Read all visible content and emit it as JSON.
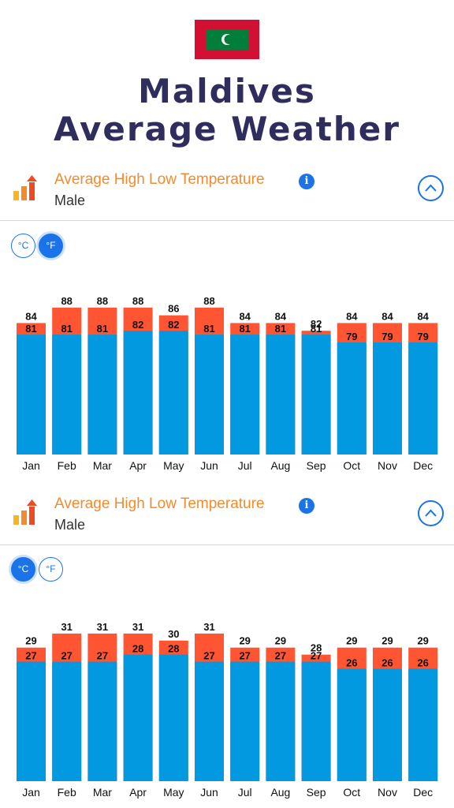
{
  "page": {
    "title_line1": "Maldives",
    "title_line2": "Average Weather"
  },
  "sections": [
    {
      "title": "Average High Low Temperature",
      "location": "Male",
      "unit_c": "°C",
      "unit_f": "°F",
      "active_unit": "F"
    },
    {
      "title": "Average High Low Temperature",
      "location": "Male",
      "unit_c": "°C",
      "unit_f": "°F",
      "active_unit": "C"
    }
  ],
  "colors": {
    "high": "#ff5533",
    "low": "#0399e0",
    "title": "#2f2c5e",
    "accent": "#f28b30",
    "button": "#1a73e8"
  },
  "chart_data": [
    {
      "type": "bar",
      "categories": [
        "Jan",
        "Feb",
        "Mar",
        "Apr",
        "May",
        "Jun",
        "Jul",
        "Aug",
        "Sep",
        "Oct",
        "Nov",
        "Dec"
      ],
      "series": [
        {
          "values": [
            84,
            88,
            88,
            88,
            86,
            88,
            84,
            84,
            82,
            84,
            84,
            84
          ]
        },
        {
          "values": [
            81,
            81,
            81,
            82,
            82,
            81,
            81,
            81,
            81,
            79,
            79,
            79
          ]
        }
      ],
      "ylim": [
        50,
        90
      ]
    },
    {
      "type": "bar",
      "categories": [
        "Jan",
        "Feb",
        "Mar",
        "Apr",
        "May",
        "Jun",
        "Jul",
        "Aug",
        "Sep",
        "Oct",
        "Nov",
        "Dec"
      ],
      "series": [
        {
          "values": [
            29,
            31,
            31,
            31,
            30,
            31,
            29,
            29,
            28,
            29,
            29,
            29
          ]
        },
        {
          "values": [
            27,
            27,
            27,
            28,
            28,
            27,
            27,
            27,
            27,
            26,
            26,
            26
          ]
        }
      ],
      "ylim": [
        10,
        32
      ]
    }
  ]
}
